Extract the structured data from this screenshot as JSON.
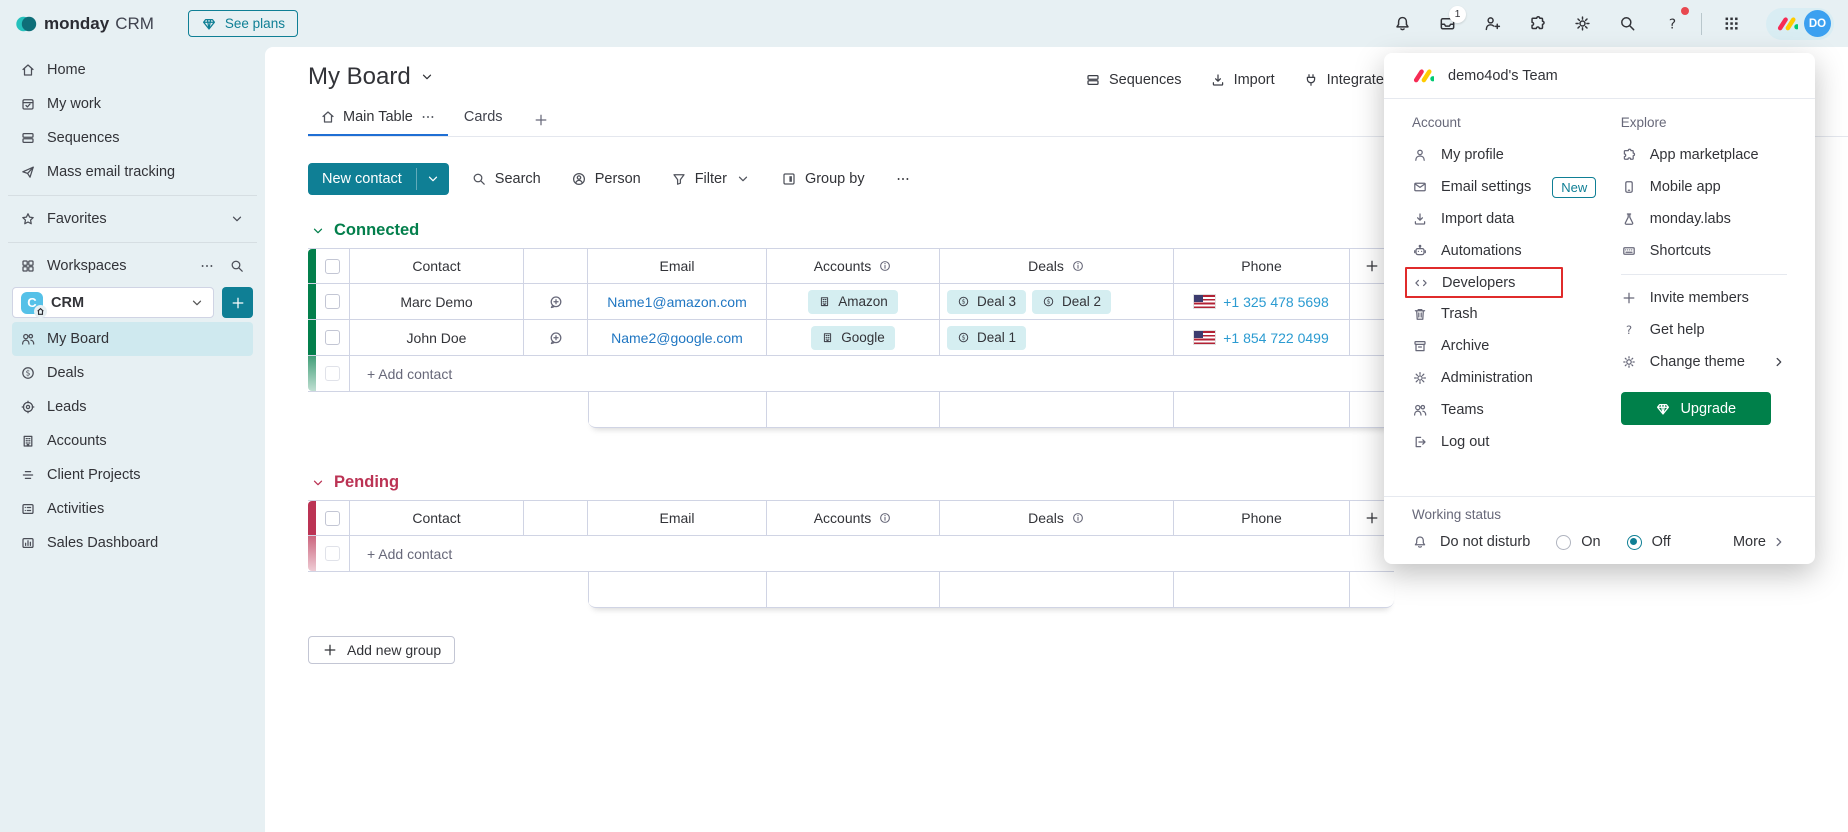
{
  "colors": {
    "topbar_bg": "#e7f0f3",
    "surface": "#ffffff",
    "accent_teal": "#0f7f95",
    "link_blue": "#1f76c2",
    "phone_blue": "#2b9bd1",
    "text_primary": "#323338",
    "text_secondary": "#676879",
    "green_group": "#037f4c",
    "red_group": "#bb3354",
    "chip_bg": "#d5eef1",
    "upgrade_green": "#00804a",
    "highlight_red": "#e02b2b",
    "tab_underline": "#1f6fd4",
    "avatar_blue": "#3ba0f0",
    "border": "#d0d4e4"
  },
  "topbar": {
    "brand_bold": "monday",
    "brand_product": "CRM",
    "see_plans": "See plans",
    "inbox_badge": "1",
    "avatar_initials": "DO"
  },
  "sidebar": {
    "items": [
      {
        "label": "Home",
        "icon": "home-icon"
      },
      {
        "label": "My work",
        "icon": "my-work-icon"
      },
      {
        "label": "Sequences",
        "icon": "sequences-icon"
      },
      {
        "label": "Mass email tracking",
        "icon": "send-icon"
      }
    ],
    "favorites": {
      "label": "Favorites",
      "icon": "star-icon"
    },
    "workspaces_label": "Workspaces",
    "workspace_switcher": {
      "name": "CRM",
      "initial": "C"
    },
    "board_links": [
      {
        "label": "My Board",
        "icon": "people-icon"
      },
      {
        "label": "Deals",
        "icon": "dollar-circle-icon"
      },
      {
        "label": "Leads",
        "icon": "target-icon"
      },
      {
        "label": "Accounts",
        "icon": "building-icon"
      },
      {
        "label": "Client Projects",
        "icon": "doc-list-icon"
      },
      {
        "label": "Activities",
        "icon": "checklist-icon"
      },
      {
        "label": "Sales Dashboard",
        "icon": "chart-icon"
      }
    ]
  },
  "board": {
    "title": "My Board",
    "actions": [
      {
        "label": "Sequences",
        "icon": "sequences-icon"
      },
      {
        "label": "Import",
        "icon": "download-icon"
      },
      {
        "label": "Integrate",
        "icon": "integrate-icon"
      }
    ],
    "tabs": [
      {
        "label": "Main Table",
        "icon": "home-icon"
      },
      {
        "label": "Cards"
      }
    ],
    "toolbar": {
      "new_contact": "New contact",
      "items": [
        {
          "label": "Search",
          "icon": "search-icon"
        },
        {
          "label": "Person",
          "icon": "person-circle-icon"
        },
        {
          "label": "Filter",
          "icon": "filter-icon",
          "chevron": true
        },
        {
          "label": "Group by",
          "icon": "groupby-icon"
        }
      ]
    },
    "columns": {
      "contact": "Contact",
      "email": "Email",
      "accounts": "Accounts",
      "deals": "Deals",
      "phone": "Phone"
    },
    "groups": [
      {
        "name": "Connected",
        "add_label": "+ Add contact",
        "rows": [
          {
            "contact": "Marc Demo",
            "email": "Name1@amazon.com",
            "account": "Amazon",
            "deals": [
              "Deal 3",
              "Deal 2"
            ],
            "phone": "+1 325 478 5698"
          },
          {
            "contact": "John Doe",
            "email": "Name2@google.com",
            "account": "Google",
            "deals": [
              "Deal 1"
            ],
            "phone": "+1 854 722 0499"
          }
        ]
      },
      {
        "name": "Pending",
        "add_label": "+ Add contact",
        "rows": []
      }
    ],
    "add_group": "Add new group"
  },
  "menu": {
    "team_name": "demo4od's Team",
    "account_section": {
      "title": "Account",
      "items": [
        {
          "label": "My profile",
          "icon": "person-icon"
        },
        {
          "label": "Email settings",
          "icon": "envelope-icon",
          "badge": "New"
        },
        {
          "label": "Import data",
          "icon": "download-icon"
        },
        {
          "label": "Automations",
          "icon": "robot-icon"
        },
        {
          "label": "Developers",
          "icon": "code-icon",
          "highlighted": true
        },
        {
          "label": "Trash",
          "icon": "trash-icon"
        },
        {
          "label": "Archive",
          "icon": "archive-icon"
        },
        {
          "label": "Administration",
          "icon": "gear-icon"
        },
        {
          "label": "Teams",
          "icon": "people-icon"
        },
        {
          "label": "Log out",
          "icon": "logout-icon"
        }
      ]
    },
    "explore_section": {
      "title": "Explore",
      "items": [
        {
          "label": "App marketplace",
          "icon": "puzzle-icon"
        },
        {
          "label": "Mobile app",
          "icon": "mobile-icon"
        },
        {
          "label": "monday.labs",
          "icon": "flask-icon"
        },
        {
          "label": "Shortcuts",
          "icon": "keyboard-icon"
        }
      ],
      "items2": [
        {
          "label": "Invite members",
          "icon": "plus-icon"
        },
        {
          "label": "Get help",
          "icon": "question-icon"
        },
        {
          "label": "Change theme",
          "icon": "theme-icon",
          "chevron": true
        }
      ],
      "upgrade_label": "Upgrade"
    },
    "working_status": {
      "title": "Working status",
      "dnd_label": "Do not disturb",
      "on_label": "On",
      "off_label": "Off",
      "selected": "Off",
      "more_label": "More"
    }
  }
}
